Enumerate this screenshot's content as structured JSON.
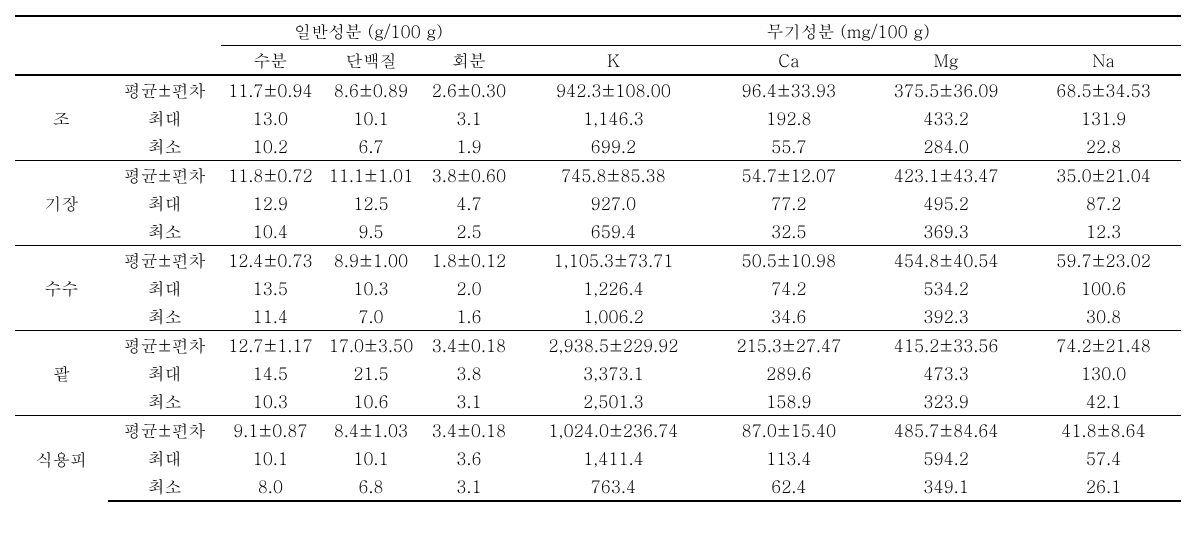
{
  "header": {
    "group1": "일반성분 (g/100 g)",
    "group2": "무기성분 (mg/100 g)",
    "sub": {
      "moist": "수분",
      "prot": "단백질",
      "ash": "회분",
      "k": "K",
      "ca": "Ca",
      "mg": "Mg",
      "na": "Na"
    }
  },
  "labels": {
    "meanSd": "평균±편차",
    "max": "최대",
    "min": "최소"
  },
  "groups": [
    {
      "name": "조",
      "rows": {
        "meanSd": {
          "moist": "11.7±0.94",
          "prot": "8.6±0.89",
          "ash": "2.6±0.30",
          "k": "942.3±108.00",
          "ca": "96.4±33.93",
          "mg": "375.5±36.09",
          "na": "68.5±34.53"
        },
        "max": {
          "moist": "13.0",
          "prot": "10.1",
          "ash": "3.1",
          "k": "1,146.3",
          "ca": "192.8",
          "mg": "433.2",
          "na": "131.9"
        },
        "min": {
          "moist": "10.2",
          "prot": "6.7",
          "ash": "1.9",
          "k": "699.2",
          "ca": "55.7",
          "mg": "284.0",
          "na": "22.8"
        }
      }
    },
    {
      "name": "기장",
      "rows": {
        "meanSd": {
          "moist": "11.8±0.72",
          "prot": "11.1±1.01",
          "ash": "3.8±0.60",
          "k": "745.8±85.38",
          "ca": "54.7±12.07",
          "mg": "423.1±43.47",
          "na": "35.0±21.04"
        },
        "max": {
          "moist": "12.9",
          "prot": "12.5",
          "ash": "4.7",
          "k": "927.0",
          "ca": "77.2",
          "mg": "495.2",
          "na": "87.2"
        },
        "min": {
          "moist": "10.4",
          "prot": "9.5",
          "ash": "2.5",
          "k": "659.4",
          "ca": "32.5",
          "mg": "369.3",
          "na": "12.3"
        }
      }
    },
    {
      "name": "수수",
      "rows": {
        "meanSd": {
          "moist": "12.4±0.73",
          "prot": "8.9±1.00",
          "ash": "1.8±0.12",
          "k": "1,105.3±73.71",
          "ca": "50.5±10.98",
          "mg": "454.8±40.54",
          "na": "59.7±23.02"
        },
        "max": {
          "moist": "13.5",
          "prot": "10.3",
          "ash": "2.0",
          "k": "1,226.4",
          "ca": "74.2",
          "mg": "534.2",
          "na": "100.6"
        },
        "min": {
          "moist": "11.4",
          "prot": "7.0",
          "ash": "1.6",
          "k": "1,006.2",
          "ca": "34.6",
          "mg": "392.3",
          "na": "30.8"
        }
      }
    },
    {
      "name": "팥",
      "rows": {
        "meanSd": {
          "moist": "12.7±1.17",
          "prot": "17.0±3.50",
          "ash": "3.4±0.18",
          "k": "2,938.5±229.92",
          "ca": "215.3±27.47",
          "mg": "415.2±33.56",
          "na": "74.2±21.48"
        },
        "max": {
          "moist": "14.5",
          "prot": "21.5",
          "ash": "3.8",
          "k": "3,373.1",
          "ca": "289.6",
          "mg": "473.3",
          "na": "130.0"
        },
        "min": {
          "moist": "10.3",
          "prot": "10.6",
          "ash": "3.1",
          "k": "2,501.3",
          "ca": "158.9",
          "mg": "323.9",
          "na": "42.1"
        }
      }
    },
    {
      "name": "식용피",
      "rows": {
        "meanSd": {
          "moist": "9.1±0.87",
          "prot": "8.4±1.03",
          "ash": "3.4±0.18",
          "k": "1,024.0±236.74",
          "ca": "87.0±15.40",
          "mg": "485.7±84.64",
          "na": "41.8±8.64"
        },
        "max": {
          "moist": "10.1",
          "prot": "10.1",
          "ash": "3.6",
          "k": "1,411.4",
          "ca": "113.4",
          "mg": "594.2",
          "na": "57.4"
        },
        "min": {
          "moist": "8.0",
          "prot": "6.8",
          "ash": "3.1",
          "k": "763.4",
          "ca": "62.4",
          "mg": "349.1",
          "na": "26.1"
        }
      }
    }
  ]
}
